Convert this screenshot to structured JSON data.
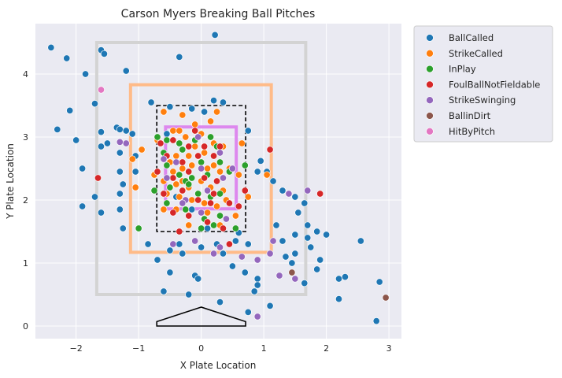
{
  "chart_data": {
    "type": "scatter",
    "title": "Carson Myers Breaking Ball Pitches",
    "xlabel": "X Plate Location",
    "ylabel": "Y Plate Location",
    "xlim": [
      -2.65,
      3.2
    ],
    "ylim": [
      -0.2,
      4.8
    ],
    "xticks": [
      -2,
      -1,
      0,
      1,
      2,
      3
    ],
    "xtick_labels": [
      "−2",
      "−1",
      "0",
      "1",
      "2",
      "3"
    ],
    "yticks": [
      0,
      1,
      2,
      3,
      4
    ],
    "ytick_labels": [
      "0",
      "1",
      "2",
      "3",
      "4"
    ],
    "grid": true,
    "legend_position": "outside-right",
    "zones": {
      "outer_gray": {
        "x": [
          -1.67,
          1.67
        ],
        "y": [
          0.5,
          4.5
        ],
        "color": "#d3d3d3"
      },
      "orange": {
        "x": [
          -1.13,
          1.12
        ],
        "y": [
          1.17,
          3.83
        ],
        "color": "#ffbb88"
      },
      "strike_zone_dashed": {
        "x": [
          -0.71,
          0.71
        ],
        "y": [
          1.5,
          3.5
        ],
        "color": "#000000"
      },
      "violet": {
        "x": [
          -0.57,
          0.56
        ],
        "y": [
          1.86,
          3.16
        ],
        "color": "#dd88ee"
      }
    },
    "home_plate": {
      "x": [
        -0.71,
        -0.71,
        0.0,
        0.71,
        0.71
      ],
      "y": [
        0.0,
        0.07,
        0.3,
        0.07,
        0.0
      ]
    },
    "series": [
      {
        "name": "BallCalled",
        "color": "#1f77b4",
        "points": [
          [
            -2.4,
            4.42
          ],
          [
            -2.15,
            4.25
          ],
          [
            -1.6,
            4.38
          ],
          [
            -1.55,
            4.32
          ],
          [
            -1.85,
            4.0
          ],
          [
            -1.2,
            4.05
          ],
          [
            0.22,
            4.62
          ],
          [
            -0.35,
            4.27
          ],
          [
            -2.1,
            3.42
          ],
          [
            -1.7,
            3.53
          ],
          [
            -0.8,
            3.55
          ],
          [
            0.2,
            3.58
          ],
          [
            0.35,
            3.55
          ],
          [
            -0.5,
            3.48
          ],
          [
            -0.15,
            3.45
          ],
          [
            0.05,
            3.4
          ],
          [
            -2.3,
            3.12
          ],
          [
            -1.6,
            3.08
          ],
          [
            -1.35,
            3.15
          ],
          [
            -1.3,
            3.12
          ],
          [
            -1.2,
            3.1
          ],
          [
            -1.1,
            3.05
          ],
          [
            -2.0,
            2.95
          ],
          [
            -1.5,
            2.9
          ],
          [
            -1.6,
            2.85
          ],
          [
            -1.3,
            2.75
          ],
          [
            -1.9,
            2.5
          ],
          [
            -1.3,
            2.45
          ],
          [
            -1.05,
            2.7
          ],
          [
            0.95,
            2.62
          ],
          [
            0.9,
            2.45
          ],
          [
            1.05,
            2.45
          ],
          [
            1.15,
            2.3
          ],
          [
            1.3,
            2.15
          ],
          [
            1.5,
            2.05
          ],
          [
            1.65,
            1.95
          ],
          [
            1.55,
            1.8
          ],
          [
            1.7,
            1.6
          ],
          [
            1.85,
            1.5
          ],
          [
            1.5,
            1.45
          ],
          [
            1.3,
            1.35
          ],
          [
            1.7,
            1.4
          ],
          [
            1.75,
            1.25
          ],
          [
            1.5,
            1.15
          ],
          [
            1.35,
            1.1
          ],
          [
            1.9,
            1.05
          ],
          [
            1.45,
            1.0
          ],
          [
            2.0,
            1.45
          ],
          [
            2.55,
            1.35
          ],
          [
            2.3,
            0.78
          ],
          [
            2.2,
            0.75
          ],
          [
            1.85,
            0.9
          ],
          [
            1.65,
            0.68
          ],
          [
            2.85,
            0.7
          ],
          [
            2.8,
            0.08
          ],
          [
            2.2,
            0.43
          ],
          [
            1.1,
            0.32
          ],
          [
            0.75,
            0.22
          ],
          [
            0.85,
            0.55
          ],
          [
            0.9,
            0.75
          ],
          [
            0.9,
            0.65
          ],
          [
            0.7,
            0.85
          ],
          [
            0.5,
            0.95
          ],
          [
            -0.1,
            0.8
          ],
          [
            -0.05,
            0.75
          ],
          [
            -0.5,
            0.85
          ],
          [
            -0.6,
            0.55
          ],
          [
            -0.2,
            0.5
          ],
          [
            0.3,
            0.38
          ],
          [
            -0.7,
            1.05
          ],
          [
            -0.5,
            1.2
          ],
          [
            -0.35,
            1.3
          ],
          [
            0.0,
            1.25
          ],
          [
            0.25,
            1.3
          ],
          [
            0.55,
            1.35
          ],
          [
            0.75,
            1.3
          ],
          [
            -1.6,
            1.8
          ],
          [
            -1.9,
            1.9
          ],
          [
            -1.3,
            1.85
          ],
          [
            -1.3,
            2.1
          ],
          [
            -1.25,
            1.55
          ],
          [
            -0.85,
            1.3
          ],
          [
            -1.7,
            2.05
          ],
          [
            0.1,
            1.55
          ],
          [
            0.6,
            1.48
          ],
          [
            -0.3,
            1.15
          ],
          [
            0.35,
            1.15
          ],
          [
            -1.25,
            2.25
          ],
          [
            -1.05,
            2.45
          ],
          [
            0.75,
            3.1
          ],
          [
            -0.55,
            3.05
          ],
          [
            1.2,
            1.6
          ],
          [
            -0.15,
            1.85
          ],
          [
            -0.4,
            2.05
          ]
        ]
      },
      {
        "name": "StrikeCalled",
        "color": "#ff7f0e",
        "points": [
          [
            -0.6,
            3.4
          ],
          [
            -0.3,
            3.35
          ],
          [
            0.25,
            3.4
          ],
          [
            -0.1,
            3.2
          ],
          [
            0.15,
            3.25
          ],
          [
            -0.45,
            3.1
          ],
          [
            -0.35,
            3.1
          ],
          [
            -0.25,
            3.0
          ],
          [
            0.0,
            3.05
          ],
          [
            -0.1,
            2.85
          ],
          [
            0.2,
            2.9
          ],
          [
            -0.4,
            2.7
          ],
          [
            -0.2,
            2.7
          ],
          [
            0.05,
            2.75
          ],
          [
            0.35,
            2.85
          ],
          [
            -0.5,
            2.6
          ],
          [
            -0.3,
            2.5
          ],
          [
            -0.15,
            2.55
          ],
          [
            0.1,
            2.5
          ],
          [
            0.3,
            2.45
          ],
          [
            0.45,
            2.5
          ],
          [
            -0.45,
            2.45
          ],
          [
            -0.6,
            2.3
          ],
          [
            -0.4,
            2.25
          ],
          [
            -0.2,
            2.2
          ],
          [
            0.0,
            2.3
          ],
          [
            0.15,
            2.2
          ],
          [
            0.35,
            2.15
          ],
          [
            -0.55,
            2.1
          ],
          [
            -0.35,
            2.05
          ],
          [
            -0.15,
            2.0
          ],
          [
            0.05,
            1.95
          ],
          [
            0.25,
            1.9
          ],
          [
            0.4,
            2.0
          ],
          [
            -0.6,
            1.85
          ],
          [
            -0.4,
            1.85
          ],
          [
            0.1,
            1.8
          ],
          [
            0.55,
            1.75
          ],
          [
            -0.75,
            2.4
          ],
          [
            -1.05,
            2.2
          ],
          [
            -1.1,
            2.65
          ],
          [
            -0.95,
            2.8
          ],
          [
            -0.7,
            2.95
          ],
          [
            0.65,
            2.9
          ],
          [
            0.6,
            2.4
          ],
          [
            1.05,
            2.4
          ],
          [
            -0.2,
            1.6
          ],
          [
            0.3,
            1.6
          ],
          [
            0.75,
            2.05
          ],
          [
            -0.3,
            2.3
          ],
          [
            0.2,
            2.55
          ]
        ]
      },
      {
        "name": "InPlay",
        "color": "#2ca02c",
        "points": [
          [
            -0.7,
            3.0
          ],
          [
            -0.55,
            2.95
          ],
          [
            -0.35,
            2.9
          ],
          [
            -0.1,
            2.95
          ],
          [
            0.15,
            3.0
          ],
          [
            -0.6,
            2.75
          ],
          [
            -0.3,
            2.8
          ],
          [
            0.0,
            2.6
          ],
          [
            0.3,
            2.6
          ],
          [
            -0.55,
            2.55
          ],
          [
            -0.35,
            2.4
          ],
          [
            -0.15,
            2.35
          ],
          [
            0.1,
            2.4
          ],
          [
            0.45,
            2.45
          ],
          [
            -0.5,
            2.2
          ],
          [
            -0.25,
            2.3
          ],
          [
            -0.05,
            2.1
          ],
          [
            0.15,
            2.05
          ],
          [
            0.3,
            2.1
          ],
          [
            -0.55,
            1.95
          ],
          [
            -0.25,
            1.85
          ],
          [
            0.05,
            1.7
          ],
          [
            0.3,
            1.75
          ],
          [
            -1.0,
            1.55
          ],
          [
            0.0,
            1.55
          ],
          [
            0.2,
            1.6
          ],
          [
            0.55,
            1.55
          ],
          [
            0.7,
            2.55
          ],
          [
            -0.75,
            2.15
          ],
          [
            0.25,
            2.85
          ],
          [
            -0.2,
            2.25
          ]
        ]
      },
      {
        "name": "FoulBallNotFieldable",
        "color": "#d62728",
        "points": [
          [
            -0.65,
            2.9
          ],
          [
            -0.45,
            2.95
          ],
          [
            -0.2,
            2.85
          ],
          [
            0.05,
            2.85
          ],
          [
            0.3,
            2.85
          ],
          [
            -0.55,
            2.7
          ],
          [
            -0.3,
            2.6
          ],
          [
            -0.05,
            2.7
          ],
          [
            0.2,
            2.7
          ],
          [
            -0.7,
            2.45
          ],
          [
            -0.45,
            2.35
          ],
          [
            -0.2,
            2.45
          ],
          [
            0.05,
            2.35
          ],
          [
            0.25,
            2.3
          ],
          [
            -0.6,
            2.1
          ],
          [
            -0.3,
            2.15
          ],
          [
            -0.05,
            2.0
          ],
          [
            0.15,
            1.95
          ],
          [
            0.45,
            1.95
          ],
          [
            -0.45,
            1.8
          ],
          [
            -0.2,
            1.75
          ],
          [
            0.1,
            1.65
          ],
          [
            0.6,
            1.9
          ],
          [
            -0.35,
            1.5
          ],
          [
            0.35,
            1.55
          ],
          [
            1.1,
            2.8
          ],
          [
            1.9,
            2.1
          ],
          [
            -1.65,
            2.35
          ],
          [
            0.7,
            2.15
          ],
          [
            0.45,
            1.3
          ],
          [
            -0.1,
            3.1
          ],
          [
            0.2,
            2.1
          ]
        ]
      },
      {
        "name": "StrikeSwinging",
        "color": "#9467bd",
        "points": [
          [
            -1.2,
            2.9
          ],
          [
            -0.6,
            2.65
          ],
          [
            -0.4,
            2.6
          ],
          [
            0.0,
            2.5
          ],
          [
            0.35,
            2.35
          ],
          [
            -0.55,
            2.35
          ],
          [
            -0.25,
            2.0
          ],
          [
            0.0,
            1.8
          ],
          [
            0.4,
            1.7
          ],
          [
            -0.45,
            1.3
          ],
          [
            -0.1,
            1.35
          ],
          [
            0.3,
            1.25
          ],
          [
            0.65,
            1.1
          ],
          [
            0.9,
            1.05
          ],
          [
            1.1,
            1.15
          ],
          [
            1.15,
            1.35
          ],
          [
            1.7,
            2.15
          ],
          [
            1.25,
            0.8
          ],
          [
            1.5,
            0.75
          ],
          [
            0.9,
            0.15
          ],
          [
            -1.3,
            2.92
          ],
          [
            0.5,
            2.5
          ],
          [
            -0.05,
            3.0
          ],
          [
            0.1,
            2.15
          ],
          [
            0.3,
            2.75
          ],
          [
            0.2,
            1.15
          ],
          [
            1.4,
            2.1
          ],
          [
            -0.3,
            1.95
          ]
        ]
      },
      {
        "name": "BallinDirt",
        "color": "#8c564b",
        "points": [
          [
            2.95,
            0.45
          ],
          [
            1.45,
            0.85
          ]
        ]
      },
      {
        "name": "HitByPitch",
        "color": "#e377c2",
        "points": [
          [
            -1.6,
            3.75
          ]
        ]
      }
    ]
  }
}
